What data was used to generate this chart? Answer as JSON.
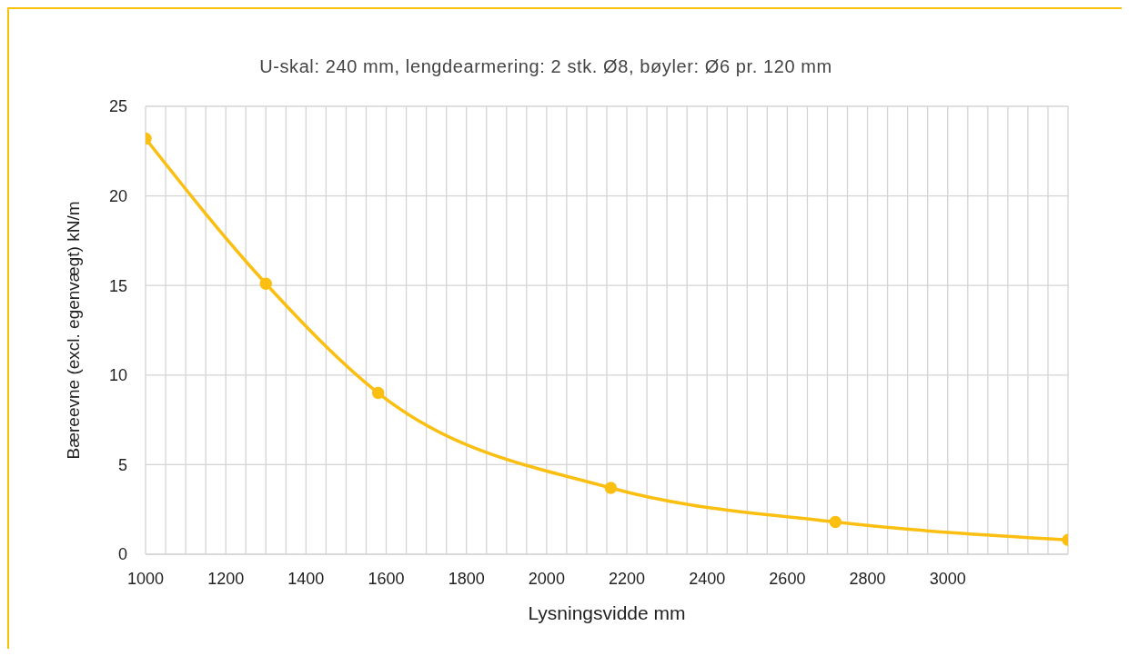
{
  "chart_data": {
    "type": "line",
    "title": "U-skal: 240 mm, lengdearmering: 2 stk. Ø8, bøyler: Ø6 pr. 120 mm",
    "xlabel": "Lysningsvidde mm",
    "ylabel": "Bæreevne (excl. egenvægt) kN/m",
    "x": [
      1000,
      1300,
      1580,
      2160,
      2720,
      3300
    ],
    "series": [
      {
        "color": "#fbbf12",
        "values": [
          23.2,
          15.1,
          9.0,
          3.7,
          1.8,
          0.8
        ]
      }
    ],
    "xlim": [
      1000,
      3300
    ],
    "xticks": [
      1000,
      {
        "value": 1050,
        "label": null
      },
      {
        "value": 1100,
        "label": null
      },
      {
        "value": 1150,
        "label": null
      },
      1200,
      {
        "value": 1250,
        "label": null
      },
      {
        "value": 1300,
        "label": null
      },
      {
        "value": 1350,
        "label": null
      },
      1400,
      {
        "value": 1450,
        "label": null
      },
      {
        "value": 1500,
        "label": null
      },
      {
        "value": 1550,
        "label": null
      },
      1600,
      {
        "value": 1650,
        "label": null
      },
      {
        "value": 1700,
        "label": null
      },
      {
        "value": 1750,
        "label": null
      },
      1800,
      {
        "value": 1850,
        "label": null
      },
      {
        "value": 1900,
        "label": null
      },
      {
        "value": 1950,
        "label": null
      },
      2000,
      {
        "value": 2050,
        "label": null
      },
      {
        "value": 2100,
        "label": null
      },
      {
        "value": 2150,
        "label": null
      },
      2200,
      {
        "value": 2250,
        "label": null
      },
      {
        "value": 2300,
        "label": null
      },
      {
        "value": 2350,
        "label": null
      },
      2400,
      {
        "value": 2450,
        "label": null
      },
      {
        "value": 2500,
        "label": null
      },
      {
        "value": 2550,
        "label": null
      },
      2600,
      {
        "value": 2650,
        "label": null
      },
      {
        "value": 2700,
        "label": null
      },
      {
        "value": 2750,
        "label": null
      },
      2800,
      {
        "value": 2850,
        "label": null
      },
      {
        "value": 2900,
        "label": null
      },
      {
        "value": 2950,
        "label": null
      },
      3000,
      {
        "value": 3050,
        "label": null
      },
      {
        "value": 3100,
        "label": null
      },
      {
        "value": 3150,
        "label": null
      },
      {
        "value": 3200,
        "label": null
      },
      {
        "value": 3250,
        "label": null
      },
      {
        "value": 3300,
        "label": null
      }
    ],
    "ylim": [
      0,
      25
    ],
    "yticks": [
      0,
      5,
      10,
      15,
      20,
      25
    ],
    "grid": true,
    "marker": "circle",
    "line_style": "solid"
  }
}
